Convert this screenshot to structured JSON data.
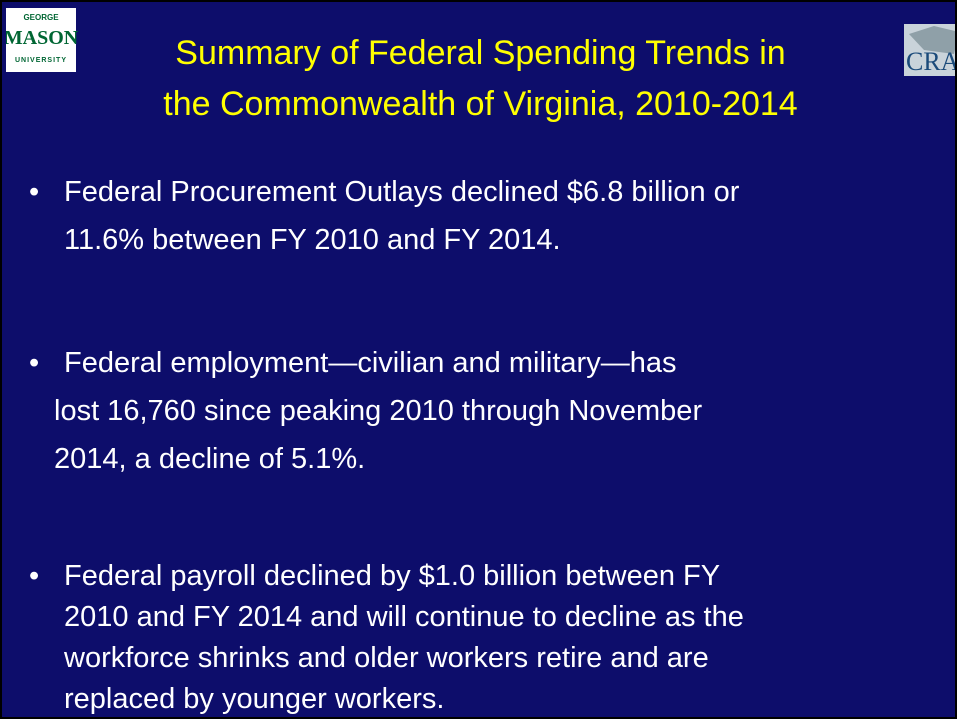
{
  "header": {
    "title_lines": [
      "Summary of Federal Spending Trends in",
      "the Commonwealth of Virginia, 2010-2014"
    ],
    "logo_left": {
      "top": "GEORGE",
      "main": "MASON",
      "bottom": "UNIVERSITY"
    },
    "logo_right": "CRA"
  },
  "bullets": [
    {
      "lines": [
        "Federal Procurement Outlays declined $6.8 billion or",
        "11.6% between FY 2010 and FY 2014."
      ]
    },
    {
      "lines": [
        "Federal employment—civilian and military—has",
        "lost 16,760 since peaking 2010 through November",
        "2014, a decline of 5.1%."
      ]
    },
    {
      "lines": [
        "Federal payroll declined by $1.0 billion between FY",
        "2010 and FY 2014 and will continue to decline as the",
        "workforce shrinks and older workers retire and are",
        "replaced by younger workers."
      ]
    }
  ]
}
